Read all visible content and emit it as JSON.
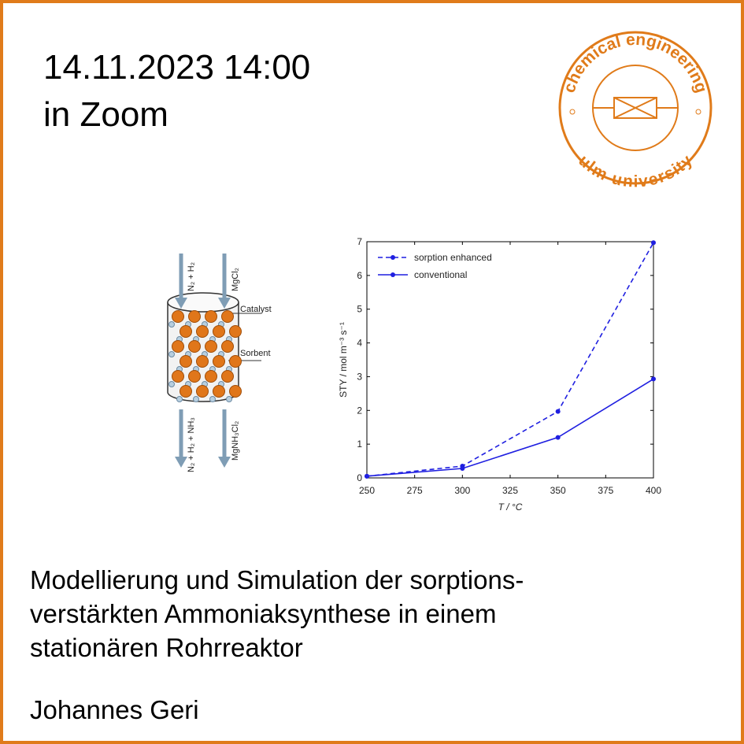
{
  "header": {
    "date": "14.11.2023 14:00",
    "location": "in Zoom"
  },
  "logo": {
    "top": "chemical engineering",
    "bottom": "ulm university"
  },
  "diagram": {
    "inlet_gas": "N₂ + H₂",
    "inlet_solid": "MgCl₂",
    "catalyst": "Catalyst",
    "sorbent": "Sorbent",
    "outlet_gas": "N₂ + H₂ + NH₃",
    "outlet_solid": "MgNH₃Cl₂"
  },
  "chart_data": {
    "type": "line",
    "x_label": "T / °C",
    "y_label": "STY / mol m⁻³ s⁻¹",
    "x": [
      250,
      300,
      350,
      400
    ],
    "series": [
      {
        "name": "sorption enhanced",
        "color": "#1f1fe0",
        "linestyle": "dashed",
        "values": [
          0.05,
          0.35,
          1.97,
          6.97
        ]
      },
      {
        "name": "conventional",
        "color": "#1f1fe0",
        "linestyle": "solid",
        "values": [
          0.05,
          0.28,
          1.2,
          2.93
        ]
      }
    ],
    "xlim": [
      250,
      400
    ],
    "xticks": [
      250,
      275,
      300,
      325,
      350,
      375,
      400
    ],
    "ylim": [
      0,
      7
    ],
    "yticks": [
      0,
      1,
      2,
      3,
      4,
      5,
      6,
      7
    ],
    "legend": "upper left"
  },
  "talk": {
    "title_lines": [
      "Modellierung und Simulation der sorptions-",
      "verstärkten Ammoniaksynthese in einem",
      "stationären Rohrreaktor"
    ],
    "author": "Johannes Geri"
  }
}
